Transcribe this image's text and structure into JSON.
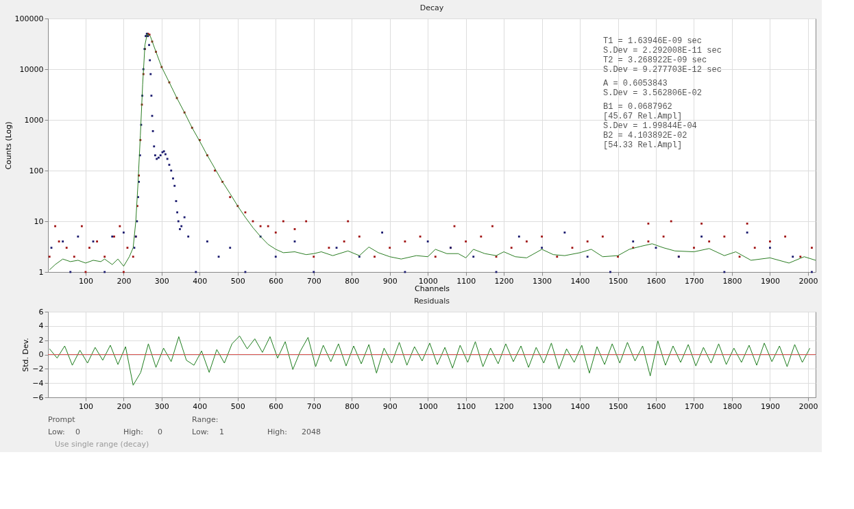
{
  "chart_data": [
    {
      "type": "scatter",
      "title": "Decay",
      "xlabel": "Channels",
      "ylabel": "Counts (Log)",
      "log": "y",
      "grid": true,
      "xlim": [
        1,
        2020
      ],
      "xticks": [
        100,
        200,
        300,
        400,
        500,
        600,
        700,
        800,
        900,
        1000,
        1100,
        1200,
        1300,
        1400,
        1500,
        1600,
        1700,
        1800,
        1900,
        2000
      ],
      "ylim": [
        1,
        100000
      ],
      "yticks": [
        1,
        10,
        100,
        1000,
        10000,
        100000
      ],
      "annotations": [
        "T1 = 1.63946E-09 sec",
        "     S.Dev = 2.292008E-11 sec",
        "T2 = 3.268922E-09 sec",
        "     S.Dev = 9.277703E-12 sec",
        "A  = 0.6053843",
        "     S.Dev = 3.562806E-02",
        "B1 = 0.0687962",
        "     [45.67 Rel.Ampl]",
        "     S.Dev = 1.99844E-04",
        "B2 = 4.103892E-02",
        "     [54.33 Rel.Ampl]"
      ],
      "series": [
        {
          "type": "scatter",
          "marker": "square",
          "color": "#a01212",
          "x": [
            5,
            20,
            30,
            50,
            70,
            90,
            110,
            130,
            150,
            175,
            190,
            210,
            225,
            100,
            200,
            232,
            236,
            240,
            244,
            248,
            252,
            256,
            260,
            264,
            268,
            275,
            285,
            300,
            320,
            340,
            360,
            380,
            400,
            420,
            440,
            460,
            480,
            500,
            520,
            540,
            560,
            580,
            600,
            620,
            650,
            680,
            700,
            740,
            780,
            820,
            860,
            900,
            940,
            980,
            1020,
            1060,
            1100,
            1140,
            1180,
            1220,
            1260,
            1300,
            1340,
            1380,
            1420,
            1460,
            1500,
            1540,
            1580,
            1620,
            1660,
            1700,
            1740,
            1780,
            1820,
            1860,
            1900,
            1940,
            1980,
            2010,
            790,
            1070,
            1640,
            1720,
            1840,
            1170,
            1580
          ],
          "values": [
            2,
            8,
            4,
            3,
            2,
            8,
            3,
            4,
            2,
            5,
            8,
            3,
            2,
            1,
            1,
            5,
            20,
            80,
            400,
            2000,
            8000,
            25000,
            45000,
            50000,
            48000,
            35000,
            22000,
            11000,
            5500,
            2700,
            1400,
            700,
            400,
            200,
            100,
            60,
            30,
            20,
            15,
            10,
            8,
            8,
            6,
            10,
            7,
            10,
            2,
            3,
            4,
            5,
            2,
            3,
            4,
            5,
            2,
            3,
            4,
            5,
            2,
            3,
            4,
            5,
            2,
            3,
            4,
            5,
            2,
            3,
            4,
            5,
            2,
            3,
            4,
            5,
            2,
            3,
            4,
            5,
            2,
            3,
            10,
            8,
            10,
            9,
            9,
            8,
            9
          ]
        },
        {
          "type": "scatter",
          "marker": "square",
          "color": "#1a1a6e",
          "x": [
            10,
            40,
            80,
            120,
            170,
            200,
            60,
            150,
            228,
            232,
            235,
            238,
            240,
            243,
            246,
            249,
            252,
            255,
            258,
            261,
            264,
            267,
            269,
            271,
            273,
            275,
            277,
            280,
            283,
            287,
            292,
            297,
            302,
            306,
            310,
            315,
            320,
            325,
            330,
            334,
            338,
            341,
            344,
            348,
            352,
            360,
            370,
            390,
            420,
            450,
            480,
            520,
            560,
            600,
            650,
            700,
            760,
            820,
            880,
            940,
            1000,
            1060,
            1120,
            1180,
            1240,
            1300,
            1360,
            1420,
            1480,
            1540,
            1600,
            1660,
            1720,
            1780,
            1840,
            1900,
            1960,
            2010
          ],
          "values": [
            3,
            4,
            5,
            4,
            5,
            6,
            1,
            1,
            3,
            5,
            10,
            30,
            60,
            200,
            800,
            3000,
            10000,
            25000,
            45000,
            50000,
            45000,
            30000,
            15000,
            8000,
            3000,
            1200,
            600,
            300,
            200,
            170,
            180,
            200,
            230,
            240,
            210,
            170,
            130,
            100,
            70,
            50,
            25,
            15,
            10,
            7,
            8,
            12,
            5,
            1,
            4,
            2,
            3,
            1,
            5,
            2,
            4,
            1,
            3,
            2,
            6,
            1,
            4,
            3,
            2,
            1,
            5,
            3,
            6,
            2,
            1,
            4,
            3,
            2,
            5,
            1,
            6,
            3,
            2,
            1
          ]
        },
        {
          "type": "line",
          "color": "#2a7d22",
          "x": [
            5,
            20,
            40,
            60,
            80,
            100,
            120,
            140,
            150,
            170,
            185,
            200,
            215,
            225,
            232,
            238,
            244,
            250,
            256,
            262,
            270,
            285,
            300,
            320,
            340,
            360,
            380,
            400,
            420,
            440,
            460,
            480,
            500,
            520,
            540,
            560,
            580,
            600,
            620,
            650,
            680,
            700,
            720,
            750,
            790,
            820,
            845,
            870,
            900,
            930,
            970,
            1000,
            1020,
            1050,
            1080,
            1100,
            1120,
            1150,
            1180,
            1200,
            1230,
            1260,
            1300,
            1330,
            1360,
            1400,
            1430,
            1460,
            1500,
            1530,
            1560,
            1590,
            1620,
            1650,
            1700,
            1740,
            1780,
            1810,
            1850,
            1900,
            1950,
            1990,
            2020
          ],
          "values": [
            1.1,
            1.4,
            1.8,
            1.6,
            1.7,
            1.5,
            1.7,
            1.6,
            1.8,
            1.4,
            1.8,
            1.3,
            2,
            3,
            10,
            60,
            500,
            5000,
            30000,
            50000,
            45000,
            22000,
            11000,
            5500,
            2700,
            1400,
            700,
            380,
            200,
            110,
            60,
            35,
            20,
            12,
            7.5,
            5,
            3.5,
            2.8,
            2.4,
            2.5,
            2.2,
            2.3,
            2.5,
            2.1,
            2.6,
            2.1,
            3.1,
            2.4,
            2,
            1.8,
            2.1,
            2,
            2.8,
            2.3,
            2.3,
            1.9,
            2.8,
            2.3,
            2.1,
            2.5,
            2,
            1.9,
            2.8,
            2.2,
            2.1,
            2.4,
            2.8,
            2,
            2.1,
            2.8,
            3.2,
            3.6,
            3,
            2.6,
            2.5,
            2.9,
            2.1,
            2.5,
            1.7,
            1.9,
            1.5,
            2,
            1.7
          ]
        }
      ]
    },
    {
      "type": "line",
      "title": "Residuals",
      "ylabel": "Std. Dev.",
      "grid": true,
      "xlim": [
        1,
        2020
      ],
      "xticks": [
        100,
        200,
        300,
        400,
        500,
        600,
        700,
        800,
        900,
        1000,
        1100,
        1200,
        1300,
        1400,
        1500,
        1600,
        1700,
        1800,
        1900,
        2000
      ],
      "ylim": [
        -6,
        6
      ],
      "yticks": [
        -6,
        -4,
        -2,
        0,
        2,
        4,
        6
      ],
      "ref_lines": [
        {
          "axis": "y",
          "value": 0,
          "color": "#d9534f"
        }
      ],
      "series": [
        {
          "color": "#1e7d1e",
          "x": [
            5,
            25,
            45,
            65,
            85,
            105,
            125,
            145,
            165,
            185,
            205,
            225,
            245,
            265,
            285,
            305,
            325,
            345,
            365,
            385,
            405,
            425,
            445,
            465,
            485,
            505,
            525,
            545,
            565,
            585,
            605,
            625,
            645,
            665,
            685,
            705,
            725,
            745,
            765,
            785,
            805,
            825,
            845,
            865,
            885,
            905,
            925,
            945,
            965,
            985,
            1005,
            1025,
            1045,
            1065,
            1085,
            1105,
            1125,
            1145,
            1165,
            1185,
            1205,
            1225,
            1245,
            1265,
            1285,
            1305,
            1325,
            1345,
            1365,
            1385,
            1405,
            1425,
            1445,
            1465,
            1485,
            1505,
            1525,
            1545,
            1565,
            1585,
            1605,
            1625,
            1645,
            1665,
            1685,
            1705,
            1725,
            1745,
            1765,
            1785,
            1805,
            1825,
            1845,
            1865,
            1885,
            1905,
            1925,
            1945,
            1965,
            1985,
            2005
          ],
          "values": [
            0.8,
            -0.5,
            1.2,
            -1.5,
            0.6,
            -1.2,
            1.0,
            -0.8,
            1.3,
            -1.4,
            1.1,
            -4.3,
            -2.5,
            1.5,
            -1.8,
            0.9,
            -1.0,
            2.5,
            -0.8,
            -1.5,
            0.5,
            -2.5,
            0.7,
            -1.2,
            1.5,
            2.6,
            0.8,
            2.2,
            0.3,
            2.5,
            -0.5,
            1.8,
            -2.1,
            0.5,
            2.4,
            -1.7,
            1.3,
            -1.0,
            1.5,
            -1.6,
            1.2,
            -1.3,
            1.4,
            -2.6,
            0.9,
            -1.2,
            1.7,
            -1.5,
            1.1,
            -0.9,
            1.6,
            -1.4,
            1.0,
            -1.9,
            1.3,
            -1.1,
            1.8,
            -1.7,
            0.9,
            -1.3,
            1.5,
            -1.0,
            1.2,
            -1.8,
            1.0,
            -1.2,
            1.6,
            -2.0,
            0.8,
            -1.1,
            1.3,
            -2.6,
            1.1,
            -1.4,
            1.5,
            -1.2,
            1.7,
            -0.9,
            1.2,
            -3.0,
            1.9,
            -1.5,
            1.2,
            -1.1,
            1.4,
            -1.6,
            1.0,
            -1.2,
            1.5,
            -1.4,
            0.9,
            -1.1,
            1.3,
            -1.5,
            1.6,
            -1.0,
            1.2,
            -1.7,
            1.4,
            -1.1,
            0.9
          ]
        }
      ]
    },
    {
      "type": "other",
      "annotations": [
        "Prompt",
        "Low:",
        "0",
        "High:",
        "0",
        "Range:",
        "Low:",
        "1",
        "High:",
        "2048",
        "Use single range (decay)"
      ]
    }
  ]
}
